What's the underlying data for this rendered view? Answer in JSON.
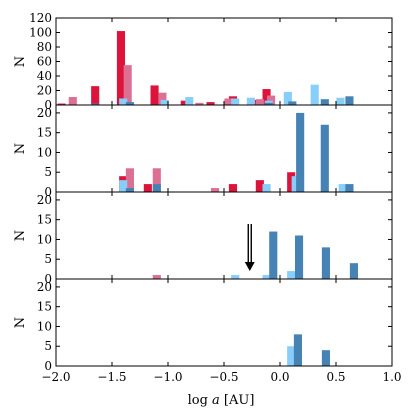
{
  "chart_data": {
    "type": "bar",
    "xlabel": "log a [AU]",
    "xlim": [
      -2.0,
      1.0
    ],
    "x_ticks": [
      "−2.0",
      "−1.5",
      "−1.0",
      "−0.5",
      "0.0",
      "0.5",
      "1.0"
    ],
    "colors": {
      "crimson": "#dc143c",
      "pink": "#db7093",
      "lightblue": "#87cefa",
      "steelblue": "#4682b4"
    },
    "bin_width": 0.0725,
    "panels": [
      {
        "ylabel": "N",
        "ylim": [
          0,
          120
        ],
        "y_ticks": [
          "0",
          "20",
          "40",
          "60",
          "80",
          "100",
          "120"
        ],
        "series": [
          {
            "color_key": "crimson",
            "x": [
              -1.95,
              -1.65,
              -1.42,
              -1.12,
              -0.85,
              -0.62,
              -0.42,
              -0.22,
              -0.12
            ],
            "values": [
              2,
              26,
              102,
              27,
              6,
              4,
              12,
              7,
              22
            ]
          },
          {
            "color_key": "pink",
            "x": [
              -1.85,
              -1.36,
              -1.05,
              -0.72,
              -0.46,
              -0.18,
              -0.08
            ],
            "values": [
              11,
              55,
              17,
              3,
              9,
              8,
              13
            ]
          },
          {
            "color_key": "lightblue",
            "x": [
              -1.4,
              -1.03,
              -0.81,
              -0.4,
              -0.26,
              -0.1,
              0.07,
              0.31,
              0.54
            ],
            "values": [
              9,
              7,
              11,
              9,
              10,
              6,
              18,
              28,
              10
            ]
          },
          {
            "color_key": "steelblue",
            "x": [
              -1.65,
              -1.34,
              -0.1,
              0.11,
              0.4,
              0.62
            ],
            "values": [
              2,
              4,
              3,
              5,
              8,
              12
            ]
          }
        ]
      },
      {
        "ylabel": "N",
        "ylim": [
          0,
          22
        ],
        "y_ticks": [
          "0",
          "5",
          "10",
          "15",
          "20"
        ],
        "series": [
          {
            "color_key": "crimson",
            "x": [
              -1.4,
              -1.18,
              -0.42,
              -0.18,
              0.1
            ],
            "values": [
              4,
              2,
              2,
              3,
              5
            ]
          },
          {
            "color_key": "pink",
            "x": [
              -1.34,
              -1.1,
              -0.58,
              -0.12
            ],
            "values": [
              6,
              6,
              1,
              1
            ]
          },
          {
            "color_key": "lightblue",
            "x": [
              -1.4,
              -0.12,
              0.14,
              0.56
            ],
            "values": [
              3,
              2,
              4,
              2
            ]
          },
          {
            "color_key": "steelblue",
            "x": [
              -1.34,
              -1.1,
              0.18,
              0.4,
              0.62
            ],
            "values": [
              1,
              2,
              20,
              17,
              2
            ]
          }
        ]
      },
      {
        "ylabel": "N",
        "ylim": [
          0,
          22
        ],
        "y_ticks": [
          "0",
          "5",
          "10",
          "15",
          "20"
        ],
        "arrow_x": -0.27,
        "series": [
          {
            "color_key": "crimson",
            "x": [],
            "values": []
          },
          {
            "color_key": "pink",
            "x": [
              -1.1
            ],
            "values": [
              1
            ]
          },
          {
            "color_key": "lightblue",
            "x": [
              -0.4,
              -0.12,
              0.1
            ],
            "values": [
              1,
              1,
              2
            ]
          },
          {
            "color_key": "steelblue",
            "x": [
              -0.06,
              0.17,
              0.41,
              0.66
            ],
            "values": [
              12,
              11,
              8,
              4
            ]
          }
        ]
      },
      {
        "ylabel": "N",
        "ylim": [
          0,
          22
        ],
        "y_ticks": [
          "0",
          "5",
          "10",
          "15",
          "20"
        ],
        "series": [
          {
            "color_key": "crimson",
            "x": [],
            "values": []
          },
          {
            "color_key": "pink",
            "x": [],
            "values": []
          },
          {
            "color_key": "lightblue",
            "x": [
              0.1
            ],
            "values": [
              5
            ]
          },
          {
            "color_key": "steelblue",
            "x": [
              0.16,
              0.41
            ],
            "values": [
              8,
              4
            ]
          }
        ]
      }
    ]
  }
}
